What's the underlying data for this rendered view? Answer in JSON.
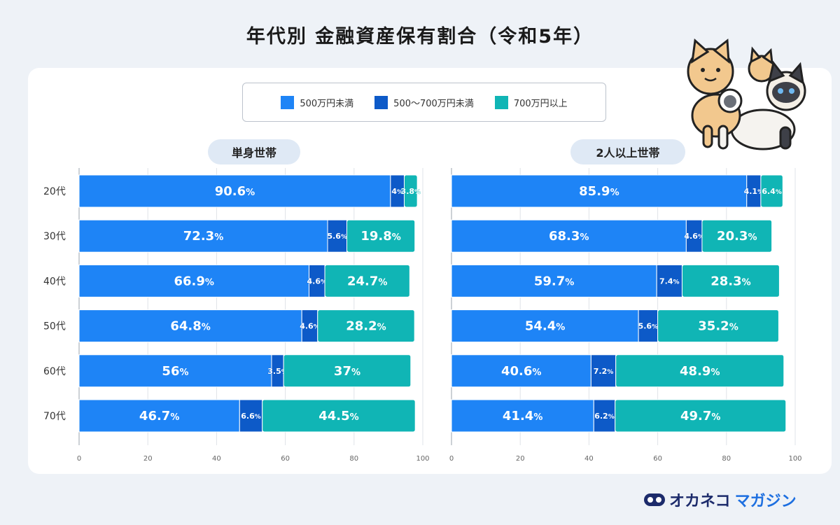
{
  "title": "年代別 金融資産保有割合（令和5年）",
  "brand": {
    "part1": "オカネコ",
    "part2": "マガジン"
  },
  "colors": {
    "low": "#1e84f6",
    "mid": "#0d5ac8",
    "high": "#10b5b5"
  },
  "chart_data": {
    "type": "bar",
    "orientation": "horizontal",
    "stacked": true,
    "title": "年代別 金融資産保有割合（令和5年）",
    "legend": [
      "500万円未満",
      "500〜700万円未満",
      "700万円以上"
    ],
    "legend_position": "top-center",
    "categories": [
      "20代",
      "30代",
      "40代",
      "50代",
      "60代",
      "70代"
    ],
    "xlim": [
      0,
      100
    ],
    "xticks": [
      0,
      20,
      40,
      60,
      80,
      100
    ],
    "grid": true,
    "panels": [
      {
        "name": "単身世帯",
        "series": [
          {
            "name": "500万円未満",
            "values": [
              90.6,
              72.3,
              66.9,
              64.8,
              56,
              46.7
            ]
          },
          {
            "name": "500〜700万円未満",
            "values": [
              4,
              5.6,
              4.6,
              4.6,
              3.5,
              6.6
            ]
          },
          {
            "name": "700万円以上",
            "values": [
              3.8,
              19.8,
              24.7,
              28.2,
              37,
              44.5
            ]
          }
        ]
      },
      {
        "name": "2人以上世帯",
        "series": [
          {
            "name": "500万円未満",
            "values": [
              85.9,
              68.3,
              59.7,
              54.4,
              40.6,
              41.4
            ]
          },
          {
            "name": "500〜700万円未満",
            "values": [
              4.1,
              4.6,
              7.4,
              5.6,
              7.2,
              6.2
            ]
          },
          {
            "name": "700万円以上",
            "values": [
              6.4,
              20.3,
              28.3,
              35.2,
              48.9,
              49.7
            ]
          }
        ]
      }
    ]
  }
}
